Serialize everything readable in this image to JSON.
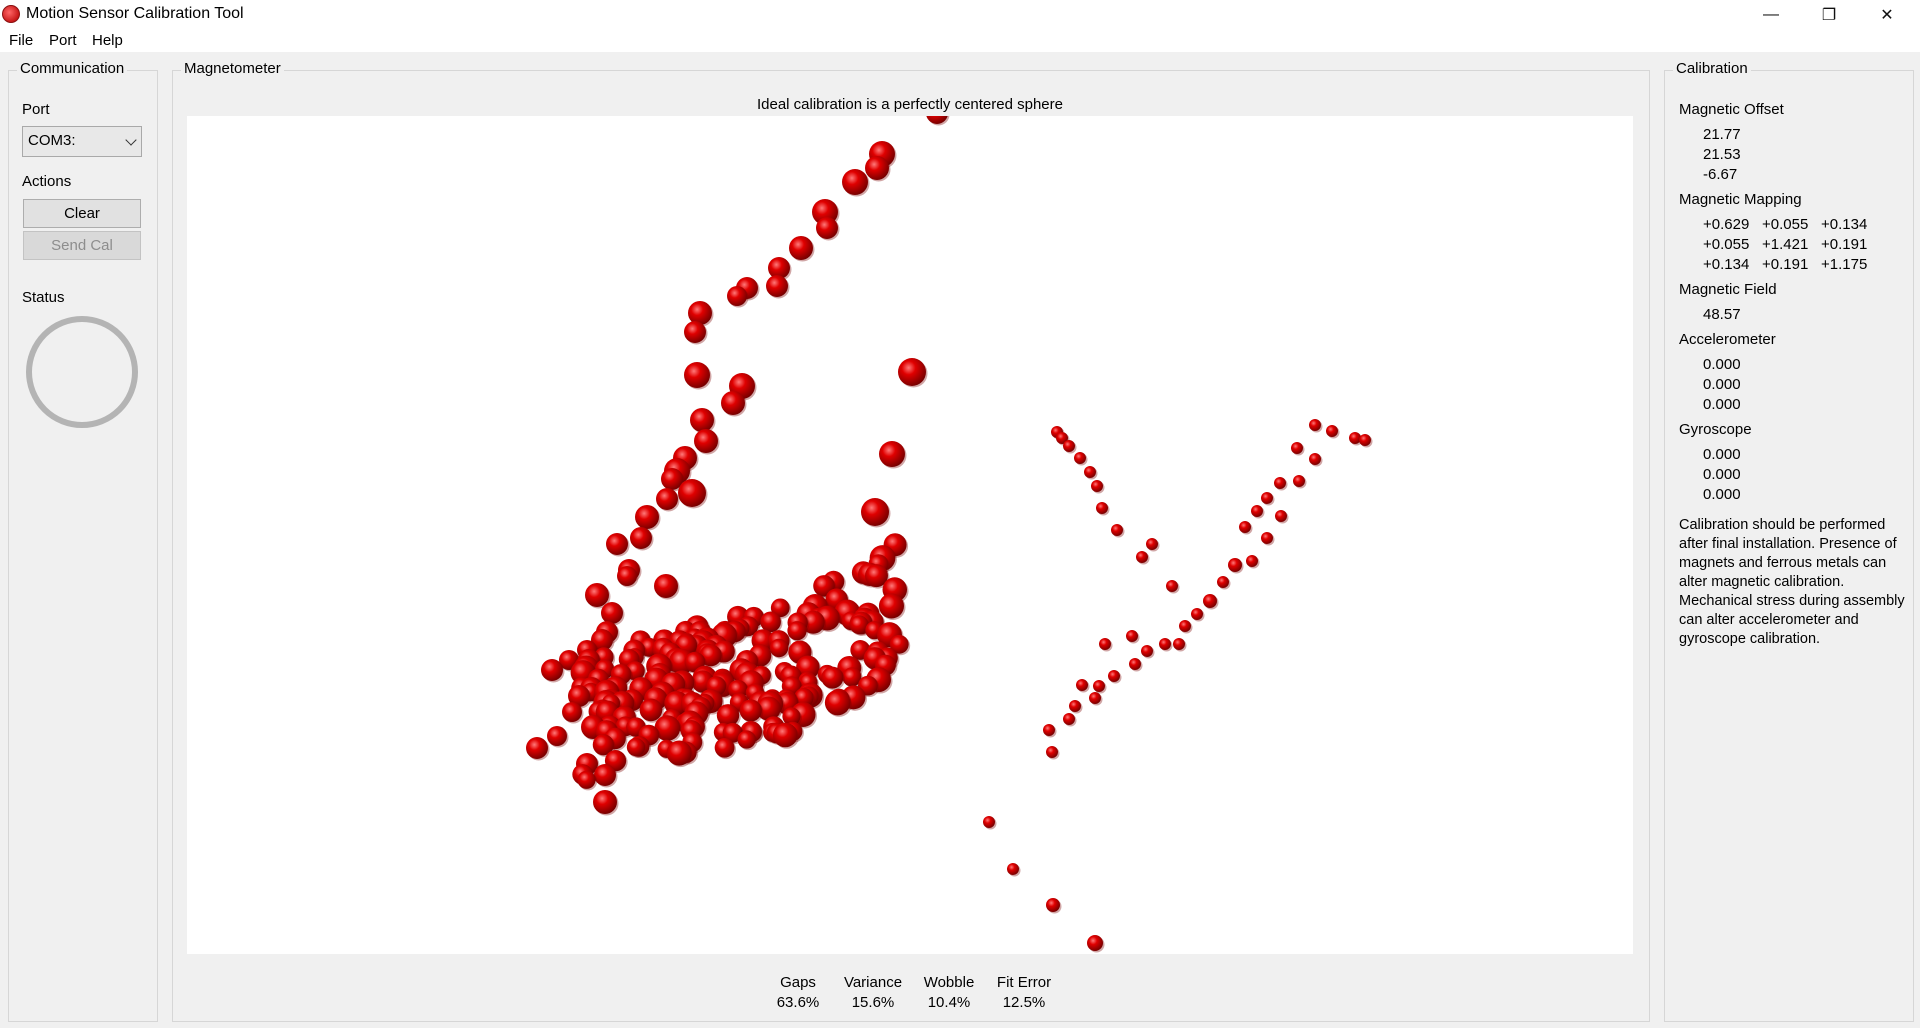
{
  "window": {
    "title": "Motion Sensor Calibration Tool"
  },
  "menu": {
    "file": "File",
    "port": "Port",
    "help": "Help"
  },
  "communication": {
    "title": "Communication",
    "port_label": "Port",
    "port_value": "COM3:",
    "actions_label": "Actions",
    "clear_label": "Clear",
    "send_cal_label": "Send Cal",
    "status_label": "Status"
  },
  "magnetometer": {
    "title": "Magnetometer",
    "plot_title": "Ideal calibration is a perfectly centered sphere",
    "stats": [
      {
        "label": "Gaps",
        "value": "63.6%"
      },
      {
        "label": "Variance",
        "value": "15.6%"
      },
      {
        "label": "Wobble",
        "value": "10.4%"
      },
      {
        "label": "Fit Error",
        "value": "12.5%"
      }
    ]
  },
  "calibration": {
    "title": "Calibration",
    "offset_label": "Magnetic Offset",
    "offset": [
      "21.77",
      "21.53",
      "-6.67"
    ],
    "mapping_label": "Magnetic Mapping",
    "mapping": [
      [
        "+0.629",
        "+0.055",
        "+0.134"
      ],
      [
        "+0.055",
        "+1.421",
        "+0.191"
      ],
      [
        "+0.134",
        "+0.191",
        "+1.175"
      ]
    ],
    "field_label": "Magnetic Field",
    "field": "48.57",
    "accel_label": "Accelerometer",
    "accel": [
      "0.000",
      "0.000",
      "0.000"
    ],
    "gyro_label": "Gyroscope",
    "gyro": [
      "0.000",
      "0.000",
      "0.000"
    ],
    "note": "Calibration should be performed after final installation.  Presence of magnets and ferrous metals can alter magnetic calibration. Mechanical stress during assembly can alter accelerometer and gyroscope calibration."
  },
  "colors": {
    "point": "#e00000",
    "point_shadow": "#7a0000"
  }
}
